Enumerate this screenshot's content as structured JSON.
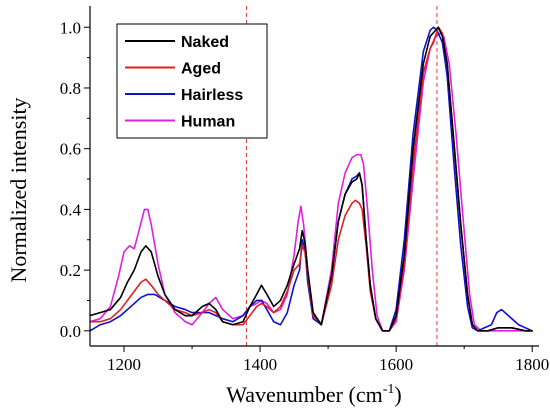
{
  "chart_data": {
    "type": "line",
    "xlabel": "Wavenumber (cm",
    "xlabel_sup": "-1",
    "xlabel_close": ")",
    "ylabel": "Normalized intensity",
    "xlim": [
      1150,
      1810
    ],
    "ylim": [
      -0.05,
      1.07
    ],
    "x_ticks": [
      1200,
      1400,
      1600,
      1800
    ],
    "y_ticks": [
      0.0,
      0.2,
      0.4,
      0.6,
      0.8,
      1.0
    ],
    "x_tick_labels": [
      "1200",
      "1400",
      "1600",
      "1800"
    ],
    "y_tick_labels": [
      "0.0",
      "0.2",
      "0.4",
      "0.6",
      "0.8",
      "1.0"
    ],
    "reference_lines_x": [
      1380,
      1660
    ],
    "reference_line_color": "#e04040",
    "legend_position": "top-left",
    "series": [
      {
        "name": "Naked",
        "color": "#000000",
        "x": [
          1150,
          1165,
          1180,
          1195,
          1205,
          1215,
          1225,
          1232,
          1240,
          1250,
          1260,
          1275,
          1290,
          1300,
          1315,
          1325,
          1335,
          1345,
          1360,
          1375,
          1385,
          1395,
          1402,
          1410,
          1420,
          1430,
          1440,
          1450,
          1458,
          1462,
          1466,
          1470,
          1478,
          1490,
          1505,
          1515,
          1525,
          1535,
          1542,
          1546,
          1550,
          1556,
          1562,
          1570,
          1580,
          1590,
          1600,
          1612,
          1625,
          1640,
          1650,
          1658,
          1662,
          1668,
          1675,
          1685,
          1695,
          1705,
          1712,
          1720,
          1735,
          1750,
          1770,
          1790,
          1800
        ],
        "y": [
          0.05,
          0.06,
          0.07,
          0.11,
          0.16,
          0.2,
          0.26,
          0.28,
          0.26,
          0.18,
          0.12,
          0.07,
          0.05,
          0.05,
          0.08,
          0.09,
          0.07,
          0.03,
          0.02,
          0.03,
          0.08,
          0.12,
          0.15,
          0.12,
          0.08,
          0.1,
          0.15,
          0.22,
          0.27,
          0.33,
          0.29,
          0.2,
          0.06,
          0.02,
          0.18,
          0.36,
          0.45,
          0.49,
          0.5,
          0.52,
          0.48,
          0.3,
          0.15,
          0.04,
          0.0,
          0.0,
          0.05,
          0.25,
          0.6,
          0.88,
          0.97,
          0.99,
          1.0,
          0.97,
          0.88,
          0.62,
          0.35,
          0.12,
          0.02,
          0.0,
          0.0,
          0.01,
          0.01,
          0.0,
          0.0
        ]
      },
      {
        "name": "Aged",
        "color": "#e02020",
        "x": [
          1150,
          1165,
          1180,
          1195,
          1205,
          1215,
          1225,
          1232,
          1240,
          1250,
          1260,
          1275,
          1290,
          1300,
          1315,
          1325,
          1335,
          1345,
          1360,
          1375,
          1385,
          1395,
          1402,
          1410,
          1420,
          1430,
          1440,
          1450,
          1458,
          1462,
          1466,
          1470,
          1478,
          1490,
          1505,
          1515,
          1525,
          1535,
          1540,
          1546,
          1550,
          1556,
          1562,
          1570,
          1580,
          1590,
          1600,
          1612,
          1625,
          1640,
          1650,
          1655,
          1662,
          1668,
          1675,
          1685,
          1695,
          1705,
          1712,
          1720,
          1735,
          1750,
          1770,
          1790,
          1800
        ],
        "y": [
          0.03,
          0.03,
          0.04,
          0.07,
          0.1,
          0.13,
          0.16,
          0.17,
          0.15,
          0.12,
          0.1,
          0.07,
          0.06,
          0.05,
          0.06,
          0.07,
          0.06,
          0.03,
          0.02,
          0.02,
          0.05,
          0.08,
          0.09,
          0.08,
          0.06,
          0.08,
          0.13,
          0.2,
          0.22,
          0.28,
          0.26,
          0.18,
          0.05,
          0.02,
          0.15,
          0.3,
          0.38,
          0.42,
          0.43,
          0.42,
          0.4,
          0.28,
          0.13,
          0.04,
          0.0,
          0.0,
          0.04,
          0.22,
          0.55,
          0.85,
          0.93,
          0.95,
          1.0,
          0.98,
          0.88,
          0.62,
          0.35,
          0.12,
          0.02,
          0.0,
          0.0,
          0.01,
          0.01,
          0.0,
          0.0
        ]
      },
      {
        "name": "Hairless",
        "color": "#1010d0",
        "x": [
          1150,
          1165,
          1180,
          1195,
          1210,
          1225,
          1235,
          1245,
          1260,
          1275,
          1290,
          1300,
          1315,
          1325,
          1335,
          1345,
          1360,
          1375,
          1385,
          1395,
          1402,
          1410,
          1420,
          1430,
          1440,
          1450,
          1458,
          1462,
          1466,
          1470,
          1478,
          1490,
          1505,
          1515,
          1525,
          1535,
          1542,
          1546,
          1550,
          1556,
          1562,
          1570,
          1580,
          1590,
          1600,
          1612,
          1625,
          1640,
          1650,
          1655,
          1660,
          1668,
          1675,
          1685,
          1695,
          1705,
          1712,
          1720,
          1730,
          1740,
          1748,
          1755,
          1765,
          1780,
          1800
        ],
        "y": [
          0.0,
          0.02,
          0.03,
          0.05,
          0.08,
          0.11,
          0.12,
          0.12,
          0.1,
          0.08,
          0.07,
          0.06,
          0.06,
          0.06,
          0.05,
          0.04,
          0.03,
          0.05,
          0.08,
          0.1,
          0.1,
          0.07,
          0.03,
          0.02,
          0.06,
          0.15,
          0.2,
          0.3,
          0.27,
          0.16,
          0.04,
          0.02,
          0.18,
          0.36,
          0.45,
          0.5,
          0.51,
          0.52,
          0.48,
          0.3,
          0.15,
          0.04,
          0.0,
          0.0,
          0.07,
          0.3,
          0.65,
          0.92,
          0.99,
          1.0,
          0.99,
          0.95,
          0.84,
          0.55,
          0.28,
          0.08,
          0.01,
          0.0,
          0.01,
          0.02,
          0.06,
          0.07,
          0.05,
          0.02,
          0.0
        ]
      },
      {
        "name": "Human",
        "color": "#e020e0",
        "x": [
          1150,
          1165,
          1180,
          1192,
          1200,
          1208,
          1215,
          1222,
          1230,
          1235,
          1240,
          1250,
          1260,
          1275,
          1290,
          1300,
          1315,
          1325,
          1335,
          1345,
          1360,
          1375,
          1385,
          1395,
          1402,
          1410,
          1420,
          1430,
          1440,
          1450,
          1456,
          1460,
          1464,
          1470,
          1478,
          1490,
          1505,
          1515,
          1525,
          1535,
          1542,
          1548,
          1552,
          1558,
          1565,
          1572,
          1580,
          1590,
          1600,
          1612,
          1625,
          1640,
          1650,
          1658,
          1665,
          1670,
          1678,
          1688,
          1698,
          1708,
          1715,
          1725,
          1740,
          1760,
          1780,
          1800
        ],
        "y": [
          0.03,
          0.04,
          0.08,
          0.18,
          0.26,
          0.28,
          0.27,
          0.33,
          0.4,
          0.4,
          0.35,
          0.22,
          0.12,
          0.06,
          0.03,
          0.02,
          0.06,
          0.09,
          0.11,
          0.07,
          0.04,
          0.05,
          0.08,
          0.09,
          0.1,
          0.09,
          0.06,
          0.07,
          0.12,
          0.25,
          0.36,
          0.41,
          0.35,
          0.2,
          0.06,
          0.02,
          0.2,
          0.42,
          0.52,
          0.57,
          0.58,
          0.58,
          0.55,
          0.4,
          0.2,
          0.05,
          0.0,
          0.0,
          0.03,
          0.2,
          0.5,
          0.82,
          0.93,
          0.97,
          0.98,
          0.97,
          0.88,
          0.65,
          0.38,
          0.12,
          0.02,
          0.0,
          0.0,
          0.0,
          0.0,
          0.0
        ]
      }
    ]
  }
}
